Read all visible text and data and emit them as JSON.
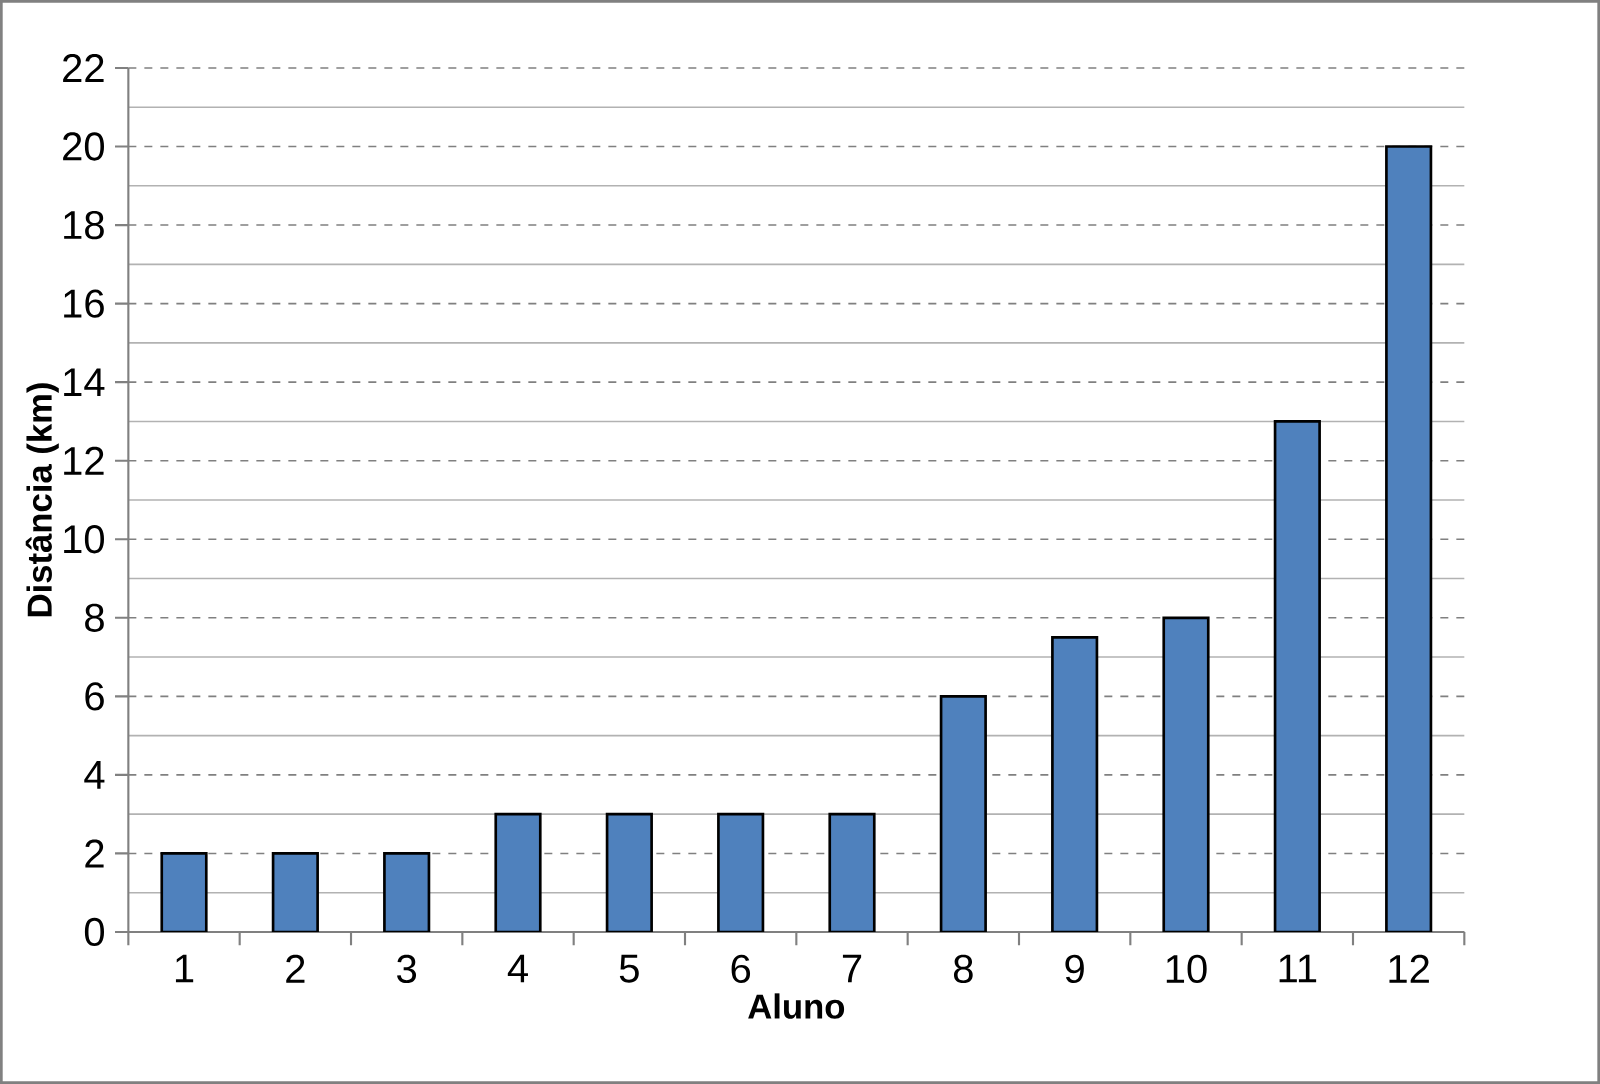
{
  "chart_data": {
    "type": "bar",
    "xlabel": "Aluno",
    "ylabel": "Distância (km)",
    "categories": [
      "1",
      "2",
      "3",
      "4",
      "5",
      "6",
      "7",
      "8",
      "9",
      "10",
      "11",
      "12"
    ],
    "values": [
      2,
      2,
      2,
      3,
      3,
      3,
      3,
      6,
      7.5,
      8,
      13,
      20
    ],
    "color": "#4f81bd",
    "ylim": [
      0,
      22
    ],
    "yticks": [
      0,
      2,
      4,
      6,
      8,
      10,
      12,
      14,
      16,
      18,
      20,
      22
    ],
    "grid": "y"
  }
}
